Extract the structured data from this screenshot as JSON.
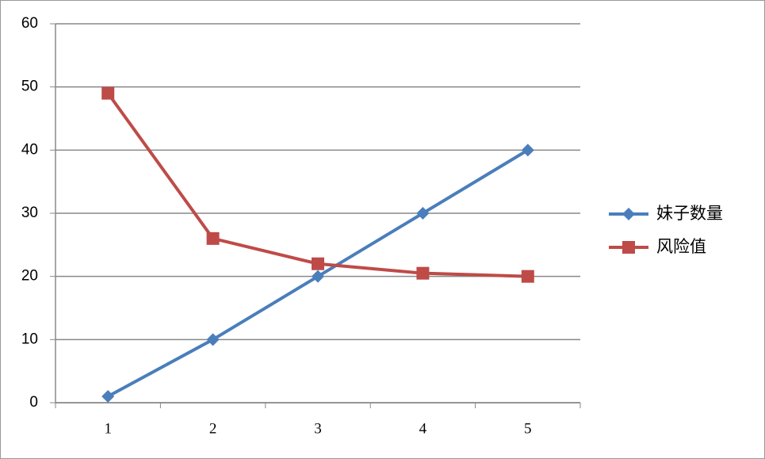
{
  "chart_data": {
    "type": "line",
    "categories": [
      "1",
      "2",
      "3",
      "4",
      "5"
    ],
    "series": [
      {
        "name": "妹子数量",
        "color": "#4a7ebb",
        "marker": "diamond",
        "values": [
          1,
          10,
          20,
          30,
          40
        ]
      },
      {
        "name": "风险值",
        "color": "#be4b48",
        "marker": "square",
        "values": [
          49,
          26,
          22,
          20.5,
          20
        ]
      }
    ],
    "ylim": [
      0,
      60
    ],
    "yticks": [
      0,
      10,
      20,
      30,
      40,
      50,
      60
    ],
    "grid": true,
    "legend": "right"
  }
}
